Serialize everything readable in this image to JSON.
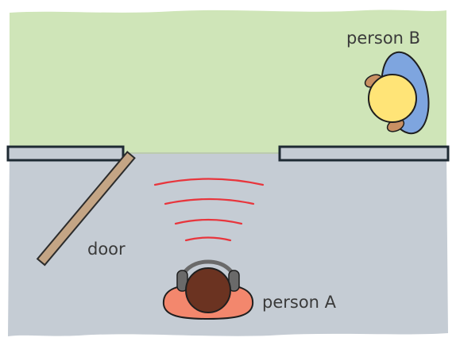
{
  "labels": {
    "person_a": "person A",
    "person_b": "person B",
    "door": "door"
  },
  "colors": {
    "outdoor_area": "#cfe5b8",
    "indoor_area": "#c5ccd4",
    "wall_fill": "#c5ccd4",
    "wall_outline": "#1e2a33",
    "door": "#c4a585",
    "sound_waves": "#e8353c",
    "person_a_head": "#6b3321",
    "person_a_body": "#f3876d",
    "person_a_headphones": "#6a6a6a",
    "person_b_head": "#ffe477",
    "person_b_body": "#7ea5df",
    "person_b_hands": "#c99063"
  },
  "icons": {
    "person_a": "person-top-view-with-headphones",
    "person_b": "person-top-view",
    "sound": "sound-waves",
    "door": "open-door"
  }
}
